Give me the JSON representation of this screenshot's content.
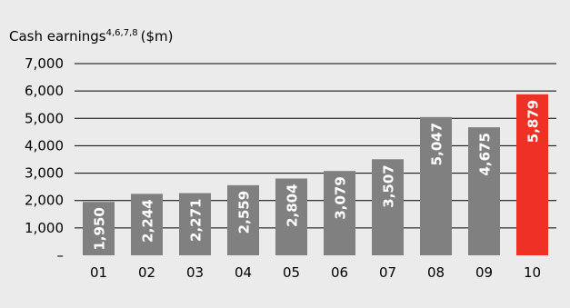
{
  "chart_data": {
    "type": "bar",
    "title": "Cash earnings",
    "title_superscript": "4,6,7,8",
    "title_unit": "($m)",
    "categories": [
      "01",
      "02",
      "03",
      "04",
      "05",
      "06",
      "07",
      "08",
      "09",
      "10"
    ],
    "values": [
      1950,
      2244,
      2271,
      2559,
      2804,
      3079,
      3507,
      5047,
      4675,
      5879
    ],
    "data_labels": [
      "1,950",
      "2,244",
      "2,271",
      "2,559",
      "2,804",
      "3,079",
      "3,507",
      "5,047",
      "4,675",
      "5,879"
    ],
    "y_ticks": [
      0,
      1000,
      2000,
      3000,
      4000,
      5000,
      6000,
      7000
    ],
    "y_tick_labels": [
      "–",
      "1,000",
      "2,000",
      "3,000",
      "4,000",
      "5,000",
      "6,000",
      "7,000"
    ],
    "ylim": [
      0,
      7000
    ],
    "grid": true,
    "highlight_index": 9,
    "colors": {
      "background": "#ebebeb",
      "bar": "#808080",
      "highlight": "#ee3124",
      "gridline": "#000000",
      "text": "#000000",
      "label": "#ffffff"
    }
  }
}
